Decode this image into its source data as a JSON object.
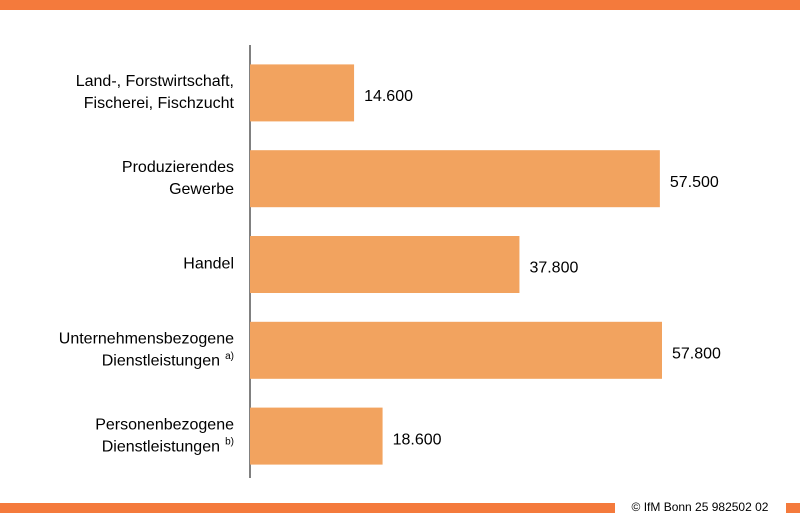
{
  "chart_data": {
    "type": "hbar",
    "categories": [
      [
        "Land-, Forstwirtschaft,",
        "Fischerei, Fischzucht"
      ],
      [
        "Produzierendes",
        "Gewerbe"
      ],
      [
        "Handel"
      ],
      [
        "Unternehmensbezogene",
        "Dienstleistungen"
      ],
      [
        "Personenbezogene",
        "Dienstleistungen"
      ]
    ],
    "category_notes": [
      null,
      null,
      null,
      "a)",
      "b)"
    ],
    "values": [
      14600,
      57500,
      37800,
      57800,
      18600
    ],
    "value_labels": [
      "14.600",
      "57.500",
      "37.800",
      "57.800",
      "18.600"
    ],
    "color": "#f2a35f",
    "source": "© IfM Bonn 25 982502 02"
  }
}
